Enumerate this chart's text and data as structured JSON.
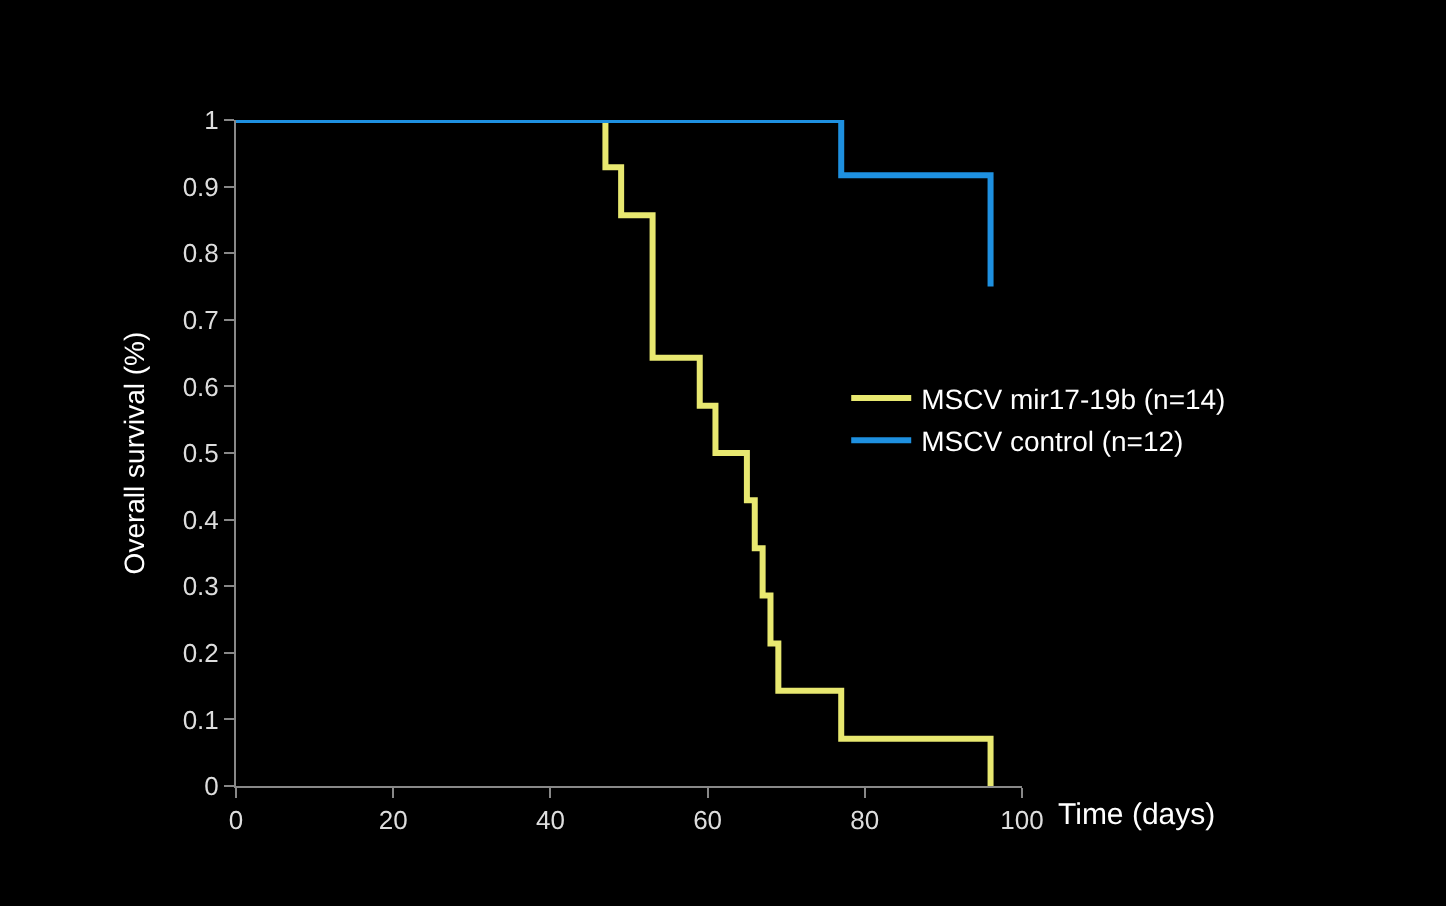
{
  "chart_data": {
    "type": "step",
    "xlabel": "Time (days)",
    "ylabel": "Overall survival (%)",
    "series": [
      {
        "name": "MSCV mir17-19b (n=14)",
        "color": "#e8e870",
        "x": [
          0,
          47,
          49,
          53,
          59,
          61,
          65,
          66,
          67,
          68,
          69,
          77,
          96
        ],
        "values": [
          1,
          0.929,
          0.857,
          0.643,
          0.571,
          0.5,
          0.429,
          0.357,
          0.286,
          0.214,
          0.143,
          0.071,
          0
        ]
      },
      {
        "name": "MSCV control (n=12)",
        "color": "#1e90e0",
        "x": [
          0,
          77,
          96
        ],
        "values": [
          1,
          0.917,
          0.75
        ]
      }
    ],
    "xlim": [
      0,
      100
    ],
    "xticks": [
      0,
      20,
      40,
      60,
      80,
      100
    ],
    "ylim": [
      0,
      1
    ],
    "yticks": [
      0,
      0.1,
      0.2,
      0.3,
      0.4,
      0.5,
      0.6,
      0.7,
      0.8,
      0.9,
      1
    ],
    "legend": "right",
    "grid": false
  }
}
